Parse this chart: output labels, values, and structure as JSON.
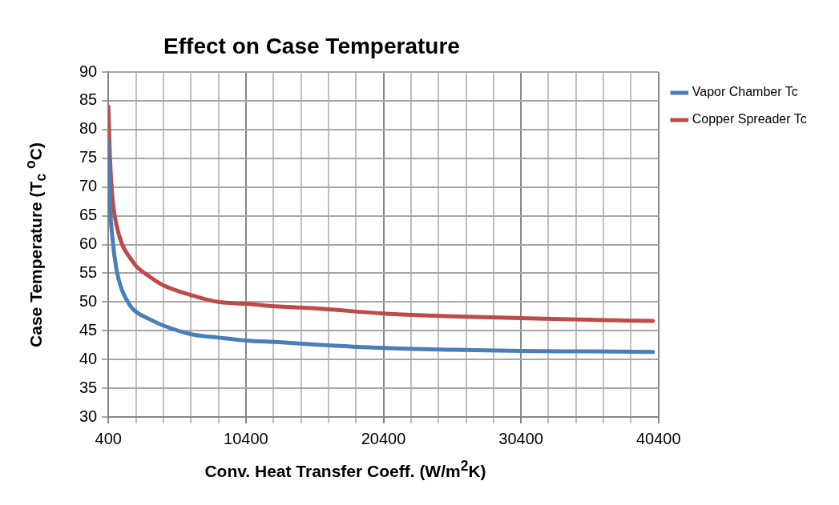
{
  "chart_data": {
    "type": "line",
    "title": "Effect on Case Temperature",
    "xlabel": "Conv. Heat Transfer Coeff. (W/m$^{2}$K)",
    "ylabel": "Case Temperature (T$_{c}$ $^{o}$C)",
    "series": [
      {
        "name": "Vapor Chamber Tc",
        "color": "#4a7ebb",
        "x": [
          400,
          500,
          700,
          1000,
          1400,
          2000,
          2400,
          3400,
          4400,
          6400,
          8400,
          10400,
          12800,
          15400,
          20400,
          25400,
          30400,
          35400,
          40000
        ],
        "values": [
          78,
          68,
          61,
          55.5,
          52,
          49.3,
          48.3,
          47,
          45.9,
          44.4,
          43.8,
          43.3,
          43,
          42.6,
          42,
          41.7,
          41.5,
          41.4,
          41.3
        ]
      },
      {
        "name": "Copper Spreader Tc",
        "color": "#be4b48",
        "x": [
          400,
          500,
          700,
          1000,
          1400,
          2000,
          2400,
          3400,
          4400,
          6400,
          8400,
          10400,
          12800,
          15400,
          20400,
          25400,
          30400,
          35400,
          40000
        ],
        "values": [
          84,
          76,
          68,
          63.3,
          60,
          57.6,
          56.3,
          54.4,
          52.9,
          51.2,
          50,
          49.7,
          49.2,
          48.9,
          48,
          47.5,
          47.2,
          46.9,
          46.7
        ]
      }
    ],
    "xlim": [
      400,
      40400
    ],
    "xticks": [
      400,
      {
        "value": 2400,
        "label": null
      },
      {
        "value": 4400,
        "label": null
      },
      {
        "value": 6400,
        "label": null
      },
      {
        "value": 8400,
        "label": null
      },
      10400,
      {
        "value": 12400,
        "label": null
      },
      {
        "value": 14400,
        "label": null
      },
      {
        "value": 16400,
        "label": null
      },
      {
        "value": 18400,
        "label": null
      },
      20400,
      {
        "value": 22400,
        "label": null
      },
      {
        "value": 24400,
        "label": null
      },
      {
        "value": 26400,
        "label": null
      },
      {
        "value": 28400,
        "label": null
      },
      30400,
      {
        "value": 32400,
        "label": null
      },
      {
        "value": 34400,
        "label": null
      },
      {
        "value": 36400,
        "label": null
      },
      {
        "value": 38400,
        "label": null
      },
      40400
    ],
    "ylim": [
      30,
      90
    ],
    "yticks": [
      30,
      35,
      40,
      45,
      50,
      55,
      60,
      65,
      70,
      75,
      80,
      85,
      90
    ],
    "grid": true,
    "legend": "top right",
    "marker": "none",
    "line_style": "solid"
  }
}
